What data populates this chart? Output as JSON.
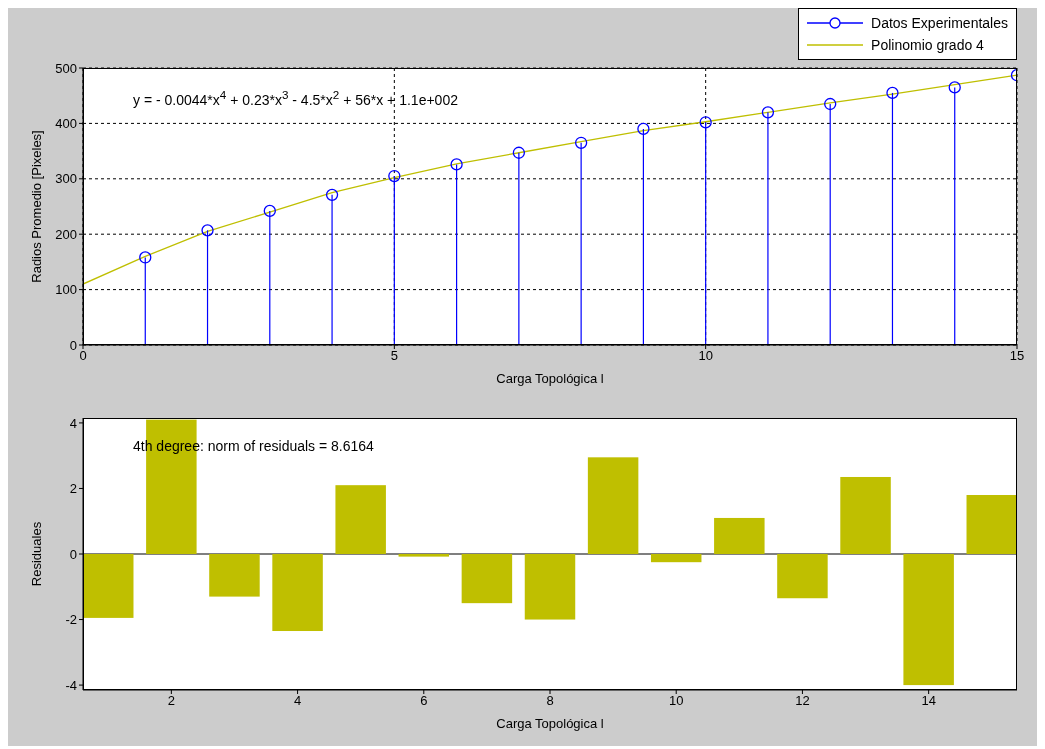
{
  "chart_data": [
    {
      "type": "lollipop",
      "xlabel": "Carga Topológica l",
      "ylabel": "Radios Promedio [Pixeles]",
      "xlim": [
        0,
        15
      ],
      "xticks": [
        0,
        5,
        10,
        15
      ],
      "ylim": [
        0,
        500
      ],
      "yticks": [
        0,
        100,
        200,
        300,
        400,
        500
      ],
      "grid": true,
      "legend": "top right",
      "annotations": [
        "y = - 0.0044*x$^{4}$ + 0.23*x$^{3}$ - 4.5*x$^{2}$ + 56*x + 1.1e+002"
      ],
      "series": [
        {
          "name": "Datos Experimentales",
          "color": "#0000ff",
          "marker": "circle",
          "x": [
            1,
            2,
            3,
            4,
            5,
            6,
            7,
            8,
            9,
            10,
            11,
            12,
            13,
            14,
            15
          ],
          "values": [
            158,
            207,
            242,
            271,
            305,
            326,
            347,
            365,
            390,
            402,
            420,
            435,
            455,
            465,
            487
          ]
        },
        {
          "name": "Polinomio grado 4",
          "type": "line",
          "color": "#bfbf00",
          "x": [
            0,
            1,
            2,
            3,
            4,
            5,
            6,
            7,
            8,
            9,
            10,
            11,
            12,
            13,
            14,
            15
          ],
          "values": [
            110,
            160,
            205,
            240,
            275,
            302,
            327,
            347,
            367,
            387,
            403,
            420,
            437,
            453,
            470,
            487
          ]
        }
      ]
    },
    {
      "type": "bar",
      "xlabel": "Carga Topológica l",
      "ylabel": "Residuales",
      "xlim": [
        0.6,
        15.4
      ],
      "xticks": [
        2,
        4,
        6,
        8,
        10,
        12,
        14
      ],
      "ylim": [
        -4.15,
        4.15
      ],
      "yticks": [
        -4,
        -2,
        0,
        2,
        4
      ],
      "annotations": [
        "4th degree: norm of residuals = 8.6164"
      ],
      "ref_lines": [
        {
          "axis": "y",
          "value": 0,
          "color": "#000000"
        }
      ],
      "series": [
        {
          "color": "#bfbf00",
          "x": [
            1,
            2,
            3,
            4,
            5,
            6,
            7,
            8,
            9,
            10,
            11,
            12,
            13,
            14,
            15
          ],
          "values": [
            -1.95,
            4.1,
            -1.3,
            -2.35,
            2.1,
            -0.08,
            -1.5,
            -2.0,
            2.95,
            -0.25,
            1.1,
            -1.35,
            2.35,
            -4.0,
            1.8
          ]
        }
      ]
    }
  ]
}
